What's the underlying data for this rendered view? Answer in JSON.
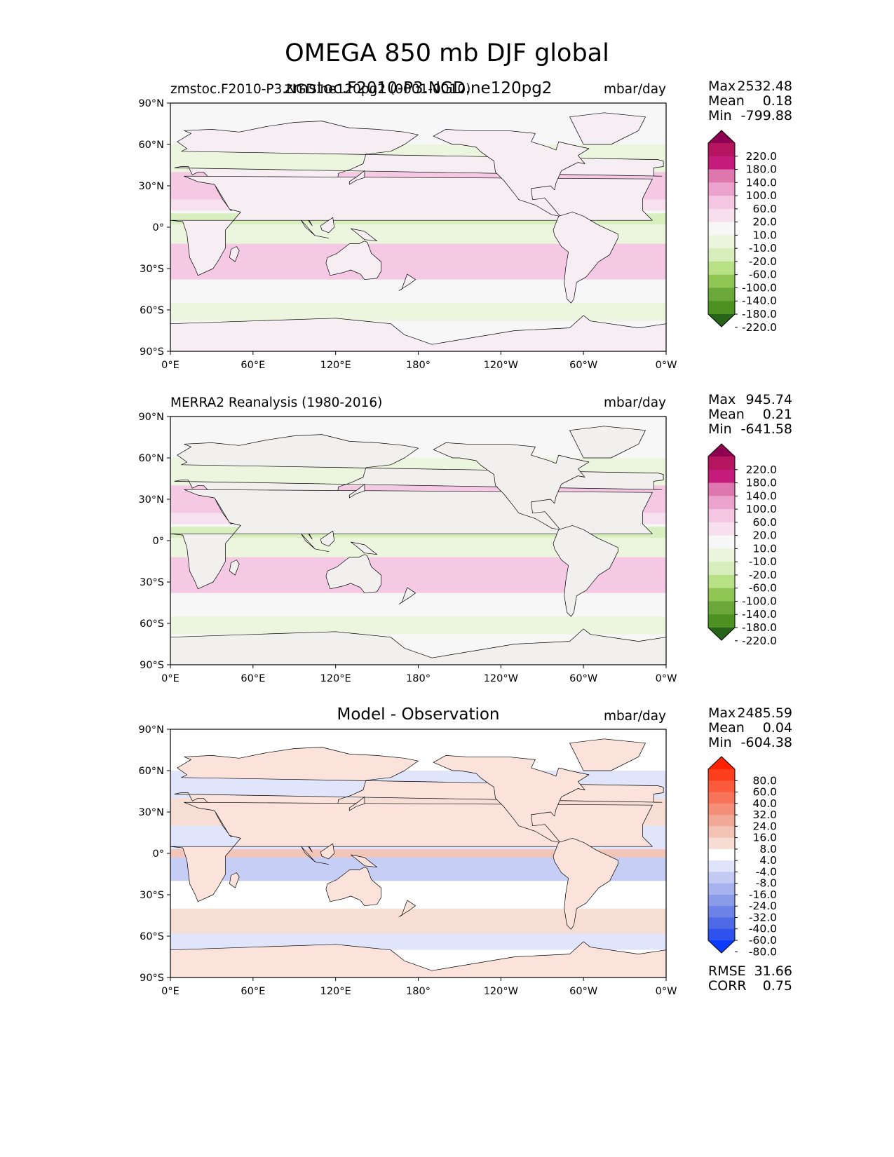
{
  "figure_title": "OMEGA 850 mb DJF global",
  "panels": [
    {
      "id": "test",
      "title_left": "zmstoc.F2010-P3.NGD.ne120pg2 (0001-0010)",
      "title_center": "zmstoc.F2010-P3.NGD.ne120pg2",
      "units": "mbar/day",
      "stats": [
        {
          "label": "Max",
          "value": "2532.48"
        },
        {
          "label": "Mean",
          "value": "0.18"
        },
        {
          "label": "Min",
          "value": "-799.88"
        }
      ],
      "colorbar_labels": [
        "220.0",
        "180.0",
        "140.0",
        "100.0",
        "60.0",
        "20.0",
        "10.0",
        "-10.0",
        "-20.0",
        "-60.0",
        "-100.0",
        "-140.0",
        "-180.0",
        "-220.0"
      ],
      "colorbar_colors": [
        "#8e0152",
        "#b5145e",
        "#c51b7d",
        "#de77ae",
        "#eba3cd",
        "#f4c6e2",
        "#f8dfee",
        "#f7f7f7",
        "#ebf5dc",
        "#d7eebc",
        "#b8e186",
        "#8fc653",
        "#6aa83a",
        "#4d9221",
        "#276419"
      ]
    },
    {
      "id": "reference",
      "title_left": "MERRA2 Reanalysis (1980-2016)",
      "title_center": "",
      "units": "mbar/day",
      "stats": [
        {
          "label": "Max",
          "value": "945.74"
        },
        {
          "label": "Mean",
          "value": "0.21"
        },
        {
          "label": "Min",
          "value": "-641.58"
        }
      ],
      "colorbar_labels": [
        "220.0",
        "180.0",
        "140.0",
        "100.0",
        "60.0",
        "20.0",
        "10.0",
        "-10.0",
        "-20.0",
        "-60.0",
        "-100.0",
        "-140.0",
        "-180.0",
        "-220.0"
      ],
      "colorbar_colors": [
        "#8e0152",
        "#b5145e",
        "#c51b7d",
        "#de77ae",
        "#eba3cd",
        "#f4c6e2",
        "#f8dfee",
        "#f7f7f7",
        "#ebf5dc",
        "#d7eebc",
        "#b8e186",
        "#8fc653",
        "#6aa83a",
        "#4d9221",
        "#276419"
      ]
    },
    {
      "id": "diff",
      "title_left": "",
      "title_center": "Model - Observation",
      "units": "mbar/day",
      "stats": [
        {
          "label": "Max",
          "value": "2485.59"
        },
        {
          "label": "Mean",
          "value": "0.04"
        },
        {
          "label": "Min",
          "value": "-604.38"
        }
      ],
      "extra_stats": [
        {
          "label": "RMSE",
          "value": "31.66"
        },
        {
          "label": "CORR",
          "value": "0.75"
        }
      ],
      "colorbar_labels": [
        "80.0",
        "60.0",
        "40.0",
        "32.0",
        "24.0",
        "16.0",
        "8.0",
        "4.0",
        "-4.0",
        "-8.0",
        "-16.0",
        "-24.0",
        "-32.0",
        "-40.0",
        "-60.0",
        "-80.0"
      ],
      "colorbar_colors": [
        "#ff2200",
        "#fe3f1d",
        "#fb5a3c",
        "#f7745a",
        "#f48e78",
        "#f2a896",
        "#f2c2b4",
        "#f6dcd3",
        "#ffffff",
        "#dfe4fb",
        "#c3cbf5",
        "#a7b3ef",
        "#8a9bea",
        "#6c82e6",
        "#4d69e6",
        "#2f52ee",
        "#0a3cff"
      ]
    }
  ],
  "chart_data": {
    "type": "heatmap",
    "map_projection": "PlateCarree",
    "x_tick_labels": [
      "0°E",
      "60°E",
      "120°E",
      "180°",
      "120°W",
      "60°W",
      "0°W"
    ],
    "y_tick_labels": [
      "90°N",
      "60°N",
      "30°N",
      "0°",
      "30°S",
      "60°S",
      "90°S"
    ],
    "x_range": [
      0,
      360
    ],
    "y_range": [
      -90,
      90
    ]
  },
  "colors": {
    "map_background": "#f7f7f7",
    "diff_background": "#ffffff",
    "coastline": "#000000"
  }
}
